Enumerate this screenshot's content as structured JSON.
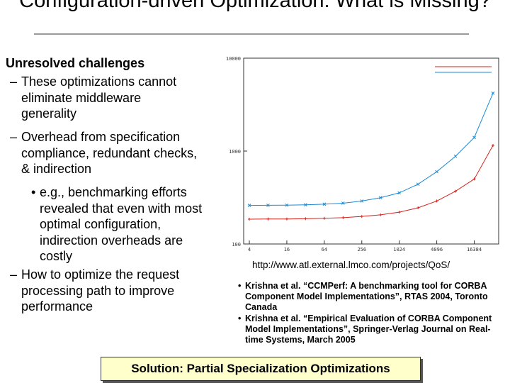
{
  "slide": {
    "title": "Configuration-driven Optimization: What is Missing?",
    "heading": "Unresolved challenges",
    "points": [
      "These optimizations cannot eliminate middleware generality",
      "Overhead from specification compliance, redundant checks, & indirection",
      "e.g., benchmarking efforts revealed that even with most optimal configuration, indirection overheads are costly",
      "How to optimize the request processing path to improve performance"
    ],
    "url": "http://www.atl.external.lmco.com/projects/QoS/",
    "references": [
      "Krishna et al. “CCMPerf: A benchmarking tool for CORBA Component Model Implementations”, RTAS 2004, Toronto Canada",
      "Krishna et al. “Empirical Evaluation of CORBA Component Model Implementations”, Springer-Verlag Journal on Real-time Systems, March 2005"
    ],
    "solution": "Solution: Partial Specialization Optimizations"
  },
  "chart_data": {
    "type": "line",
    "yscale": "log",
    "x": [
      4,
      8,
      16,
      32,
      64,
      128,
      256,
      512,
      1024,
      2048,
      4096,
      8192,
      16384,
      32768
    ],
    "xticks": [
      4,
      16,
      64,
      256,
      1024,
      4096,
      16384
    ],
    "ylim": [
      100,
      10000
    ],
    "yticks": [
      "100",
      "1000",
      "10000"
    ],
    "series": [
      {
        "color": "#1a8ad4",
        "marker": "x",
        "values": [
          260,
          261,
          262,
          264,
          268,
          275,
          290,
          315,
          355,
          440,
          600,
          880,
          1400,
          4200
        ]
      },
      {
        "color": "#d6231c",
        "marker": "+",
        "values": [
          185,
          186,
          186,
          187,
          189,
          192,
          198,
          206,
          220,
          245,
          290,
          370,
          500,
          1150
        ]
      }
    ],
    "legend_position": "top-right"
  }
}
